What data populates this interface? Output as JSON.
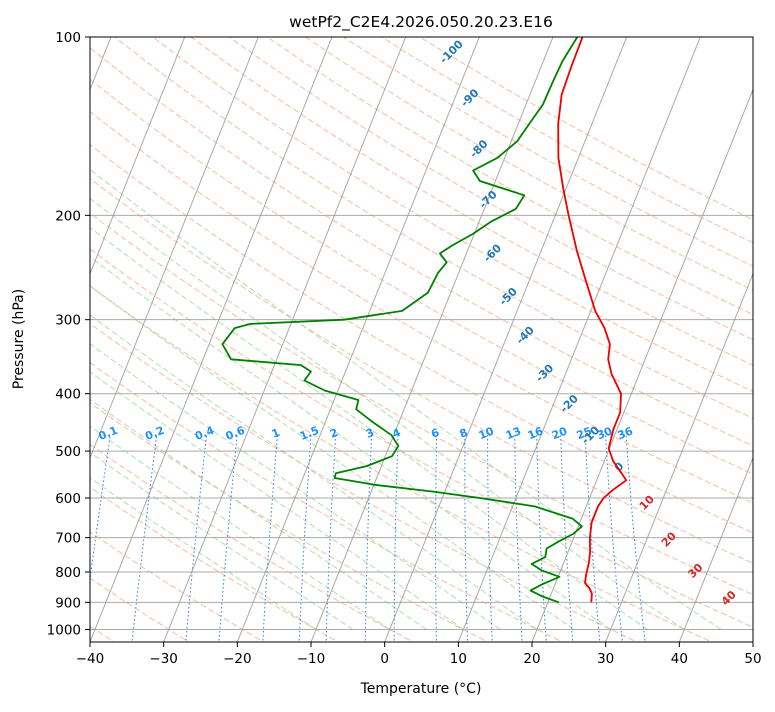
{
  "chart_data": {
    "type": "skewt",
    "title": "wetPf2_C2E4.2026.050.20.23.E16",
    "xlabel": "Temperature (°C)",
    "ylabel": "Pressure (hPa)",
    "xlim": [
      -40,
      50
    ],
    "plim": [
      1050,
      100
    ],
    "x_ticks": [
      -40,
      -30,
      -20,
      -10,
      0,
      10,
      20,
      30,
      40,
      50
    ],
    "p_ticks": [
      100,
      200,
      300,
      400,
      500,
      600,
      700,
      800,
      900,
      1000
    ],
    "x_tick_labels": [
      "−40",
      "−30",
      "−20",
      "−10",
      "0",
      "10",
      "20",
      "30",
      "40",
      "50"
    ],
    "p_tick_labels": [
      "100",
      "200",
      "300",
      "400",
      "500",
      "600",
      "700",
      "800",
      "900",
      "1000"
    ],
    "colors": {
      "temperature": "#ee0000",
      "dewpoint": "#008000",
      "isotherm": "#9a9a9a",
      "isobar": "#aaaaaa",
      "dry_adiabat": "#f4a582",
      "moist_adiabat": "#9fd49f",
      "mixing_ratio": "#1f77e4",
      "dry_label": "#1f77b4",
      "moist_label": "#d62728"
    },
    "series": [
      {
        "name": "Temperature",
        "points": [
          {
            "p": 900,
            "t": 25.9
          },
          {
            "p": 870,
            "t": 25.5
          },
          {
            "p": 850,
            "t": 24.8
          },
          {
            "p": 835,
            "t": 24.0
          },
          {
            "p": 810,
            "t": 23.7
          },
          {
            "p": 770,
            "t": 23.4
          },
          {
            "p": 740,
            "t": 23.0
          },
          {
            "p": 700,
            "t": 22.2
          },
          {
            "p": 660,
            "t": 21.6
          },
          {
            "p": 620,
            "t": 21.6
          },
          {
            "p": 600,
            "t": 21.9
          },
          {
            "p": 580,
            "t": 22.8
          },
          {
            "p": 560,
            "t": 24.0
          },
          {
            "p": 545,
            "t": 23.0
          },
          {
            "p": 520,
            "t": 21.2
          },
          {
            "p": 495,
            "t": 19.9
          },
          {
            "p": 460,
            "t": 19.5
          },
          {
            "p": 430,
            "t": 19.5
          },
          {
            "p": 400,
            "t": 18.6
          },
          {
            "p": 370,
            "t": 16.2
          },
          {
            "p": 350,
            "t": 15.0
          },
          {
            "p": 330,
            "t": 14.4
          },
          {
            "p": 310,
            "t": 12.8
          },
          {
            "p": 290,
            "t": 10.6
          },
          {
            "p": 260,
            "t": 7.9
          },
          {
            "p": 230,
            "t": 4.9
          },
          {
            "p": 200,
            "t": 1.8
          },
          {
            "p": 180,
            "t": -0.4
          },
          {
            "p": 160,
            "t": -2.7
          },
          {
            "p": 140,
            "t": -4.6
          },
          {
            "p": 125,
            "t": -5.7
          },
          {
            "p": 112,
            "t": -5.9
          },
          {
            "p": 100,
            "t": -6.0
          }
        ]
      },
      {
        "name": "Dewpoint",
        "points": [
          {
            "p": 900,
            "t": 21.5
          },
          {
            "p": 880,
            "t": 19.0
          },
          {
            "p": 860,
            "t": 17.0
          },
          {
            "p": 840,
            "t": 18.2
          },
          {
            "p": 815,
            "t": 20.2
          },
          {
            "p": 795,
            "t": 17.4
          },
          {
            "p": 775,
            "t": 15.7
          },
          {
            "p": 755,
            "t": 17.2
          },
          {
            "p": 730,
            "t": 16.9
          },
          {
            "p": 710,
            "t": 18.2
          },
          {
            "p": 690,
            "t": 19.7
          },
          {
            "p": 670,
            "t": 20.5
          },
          {
            "p": 650,
            "t": 18.8
          },
          {
            "p": 620,
            "t": 13.0
          },
          {
            "p": 600,
            "t": 5.1
          },
          {
            "p": 585,
            "t": -1.7
          },
          {
            "p": 570,
            "t": -9.9
          },
          {
            "p": 555,
            "t": -15.7
          },
          {
            "p": 545,
            "t": -15.8
          },
          {
            "p": 530,
            "t": -12.0
          },
          {
            "p": 510,
            "t": -9.1
          },
          {
            "p": 490,
            "t": -8.8
          },
          {
            "p": 470,
            "t": -10.3
          },
          {
            "p": 445,
            "t": -13.8
          },
          {
            "p": 425,
            "t": -16.5
          },
          {
            "p": 410,
            "t": -16.7
          },
          {
            "p": 395,
            "t": -21.8
          },
          {
            "p": 380,
            "t": -25.1
          },
          {
            "p": 367,
            "t": -24.7
          },
          {
            "p": 358,
            "t": -26.4
          },
          {
            "p": 350,
            "t": -36.2
          },
          {
            "p": 330,
            "t": -38.2
          },
          {
            "p": 310,
            "t": -37.4
          },
          {
            "p": 305,
            "t": -35.5
          },
          {
            "p": 300,
            "t": -23.0
          },
          {
            "p": 290,
            "t": -15.6
          },
          {
            "p": 270,
            "t": -13.1
          },
          {
            "p": 250,
            "t": -12.8
          },
          {
            "p": 240,
            "t": -12.2
          },
          {
            "p": 232,
            "t": -13.6
          },
          {
            "p": 225,
            "t": -12.4
          },
          {
            "p": 215,
            "t": -10.2
          },
          {
            "p": 205,
            "t": -8.4
          },
          {
            "p": 195,
            "t": -5.7
          },
          {
            "p": 185,
            "t": -5.3
          },
          {
            "p": 175,
            "t": -12.1
          },
          {
            "p": 168,
            "t": -13.6
          },
          {
            "p": 160,
            "t": -11.0
          },
          {
            "p": 150,
            "t": -9.2
          },
          {
            "p": 140,
            "t": -8.5
          },
          {
            "p": 130,
            "t": -7.7
          },
          {
            "p": 120,
            "t": -7.6
          },
          {
            "p": 110,
            "t": -7.4
          },
          {
            "p": 100,
            "t": -6.7
          }
        ]
      }
    ],
    "isotherms": [
      -140,
      -130,
      -120,
      -110,
      -100,
      -90,
      -80,
      -70,
      -60,
      -50,
      -40,
      -30,
      -20,
      -10,
      0,
      10,
      20,
      30,
      40,
      50
    ],
    "dry_adiabats": [
      -130,
      -120,
      -110,
      -100,
      -90,
      -80,
      -70,
      -60,
      -50,
      -40,
      -30,
      -20,
      -10,
      0,
      10,
      20,
      30,
      40,
      50,
      60,
      70,
      80,
      90,
      100,
      110,
      120,
      130,
      140,
      150,
      160,
      170,
      180,
      190,
      200
    ],
    "moist_adiabats": [
      -10,
      -5,
      0,
      5,
      10,
      15,
      20,
      25,
      30,
      35,
      40,
      45
    ],
    "mixing_ratios": [
      0.1,
      0.2,
      0.4,
      0.6,
      1,
      1.5,
      2,
      3,
      4,
      6,
      8,
      10,
      13,
      16,
      20,
      25,
      30,
      36
    ],
    "mixing_ratio_labels": [
      {
        "w": 0.1,
        "text": "0.1"
      },
      {
        "w": 0.2,
        "text": "0.2"
      },
      {
        "w": 0.4,
        "text": "0.4"
      },
      {
        "w": 0.6,
        "text": "0.6"
      },
      {
        "w": 1,
        "text": "1"
      },
      {
        "w": 1.5,
        "text": "1.5"
      },
      {
        "w": 2,
        "text": "2"
      },
      {
        "w": 3,
        "text": "3"
      },
      {
        "w": 4,
        "text": "4"
      },
      {
        "w": 6,
        "text": "6"
      },
      {
        "w": 8,
        "text": "8"
      },
      {
        "w": 10,
        "text": "10"
      },
      {
        "w": 13,
        "text": "13"
      },
      {
        "w": 16,
        "text": "16"
      },
      {
        "w": 20,
        "text": "20"
      },
      {
        "w": 25,
        "text": "25"
      },
      {
        "w": 30,
        "text": "30"
      },
      {
        "w": 36,
        "text": "36"
      }
    ],
    "mixing_ratio_label_pressure": 480,
    "dry_adiabat_labels": [
      {
        "text": "-100",
        "t": -22.5,
        "p": 107
      },
      {
        "text": "-90",
        "t": -17.5,
        "p": 128
      },
      {
        "text": "-80",
        "t": -13.5,
        "p": 156
      },
      {
        "text": "-70",
        "t": -9.5,
        "p": 190
      },
      {
        "text": "-60",
        "t": -6.0,
        "p": 234
      },
      {
        "text": "-50",
        "t": -1.5,
        "p": 277
      },
      {
        "text": "-40",
        "t": 2.9,
        "p": 322
      },
      {
        "text": "-30",
        "t": 7.6,
        "p": 373
      },
      {
        "text": "-20",
        "t": 12.6,
        "p": 420
      },
      {
        "text": "-10",
        "t": 17.2,
        "p": 475
      },
      {
        "text": "0",
        "t": 22.8,
        "p": 537
      }
    ],
    "moist_adiabat_labels": [
      {
        "text": "10",
        "t": 28.5,
        "p": 617
      },
      {
        "text": "20",
        "t": 33.5,
        "p": 712
      },
      {
        "text": "30",
        "t": 38.8,
        "p": 804
      },
      {
        "text": "40",
        "t": 44.8,
        "p": 894
      }
    ],
    "z_label": {
      "text": "0",
      "t": 22.8,
      "p": 537
    }
  }
}
